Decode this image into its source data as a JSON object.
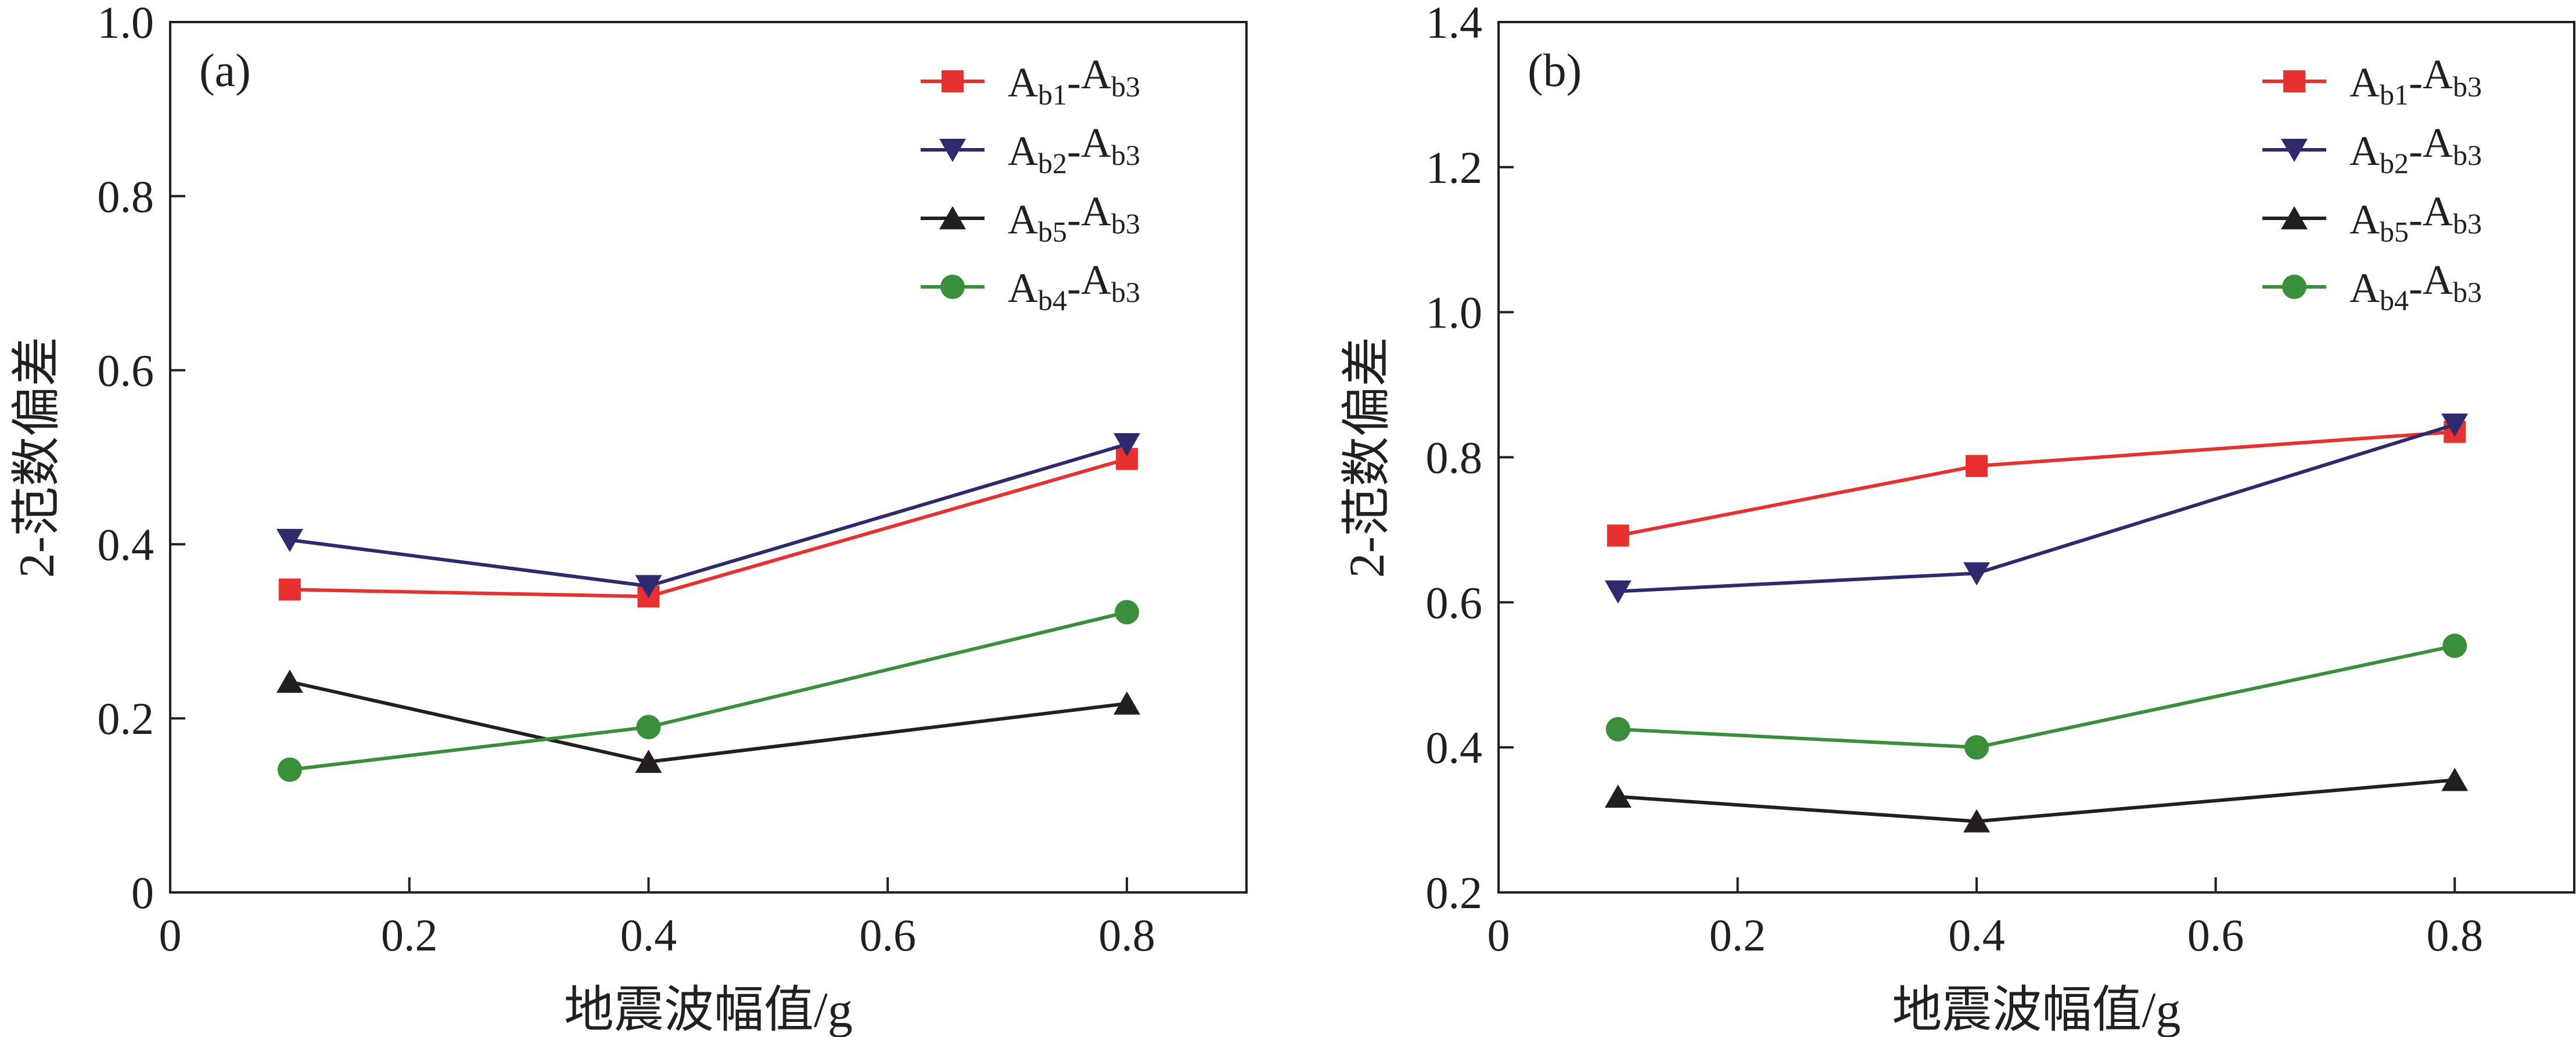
{
  "figure": {
    "panels": [
      "a",
      "b"
    ]
  },
  "chart_data": [
    {
      "type": "line",
      "panel_label": "(a)",
      "xlabel": "地震波幅值/g",
      "ylabel": "2-范数偏差",
      "xlim": [
        0,
        0.9
      ],
      "ylim": [
        0,
        1.0
      ],
      "xticks": [
        "0",
        "0.2",
        "0.4",
        "0.6",
        "0.8"
      ],
      "yticks": [
        "0",
        "0.2",
        "0.4",
        "0.6",
        "0.8",
        "1.0"
      ],
      "legend_position": "top-right",
      "x": [
        0.1,
        0.4,
        0.8
      ],
      "series": [
        {
          "name": "Ab1-Ab3",
          "main1": "A",
          "sub1": "b1",
          "sep": "-",
          "main2": "A",
          "sub2": "b3",
          "color": "#e8312f",
          "marker": "square",
          "values": [
            0.348,
            0.34,
            0.498
          ]
        },
        {
          "name": "Ab2-Ab3",
          "main1": "A",
          "sub1": "b2",
          "sep": "-",
          "main2": "A",
          "sub2": "b3",
          "color": "#2e2a6e",
          "marker": "triangle-down",
          "values": [
            0.405,
            0.352,
            0.515
          ]
        },
        {
          "name": "Ab5-Ab3",
          "main1": "A",
          "sub1": "b5",
          "sep": "-",
          "main2": "A",
          "sub2": "b3",
          "color": "#231f20",
          "marker": "triangle-up",
          "values": [
            0.242,
            0.15,
            0.217
          ]
        },
        {
          "name": "Ab4-Ab3",
          "main1": "A",
          "sub1": "b4",
          "sep": "-",
          "main2": "A",
          "sub2": "b3",
          "color": "#3a8f3a",
          "marker": "circle",
          "values": [
            0.141,
            0.19,
            0.322
          ]
        }
      ]
    },
    {
      "type": "line",
      "panel_label": "(b)",
      "xlabel": "地震波幅值/g",
      "ylabel": "2-范数偏差",
      "xlim": [
        0,
        0.9
      ],
      "ylim": [
        0.2,
        1.4
      ],
      "xticks": [
        "0",
        "0.2",
        "0.4",
        "0.6",
        "0.8"
      ],
      "yticks": [
        "0.2",
        "0.4",
        "0.6",
        "0.8",
        "1.0",
        "1.2",
        "1.4"
      ],
      "legend_position": "top-right",
      "x": [
        0.1,
        0.4,
        0.8
      ],
      "series": [
        {
          "name": "Ab1-Ab3",
          "main1": "A",
          "sub1": "b1",
          "sep": "-",
          "main2": "A",
          "sub2": "b3",
          "color": "#e8312f",
          "marker": "square",
          "values": [
            0.692,
            0.788,
            0.835
          ]
        },
        {
          "name": "Ab2-Ab3",
          "main1": "A",
          "sub1": "b2",
          "sep": "-",
          "main2": "A",
          "sub2": "b3",
          "color": "#2e2a6e",
          "marker": "triangle-down",
          "values": [
            0.615,
            0.64,
            0.845
          ]
        },
        {
          "name": "Ab5-Ab3",
          "main1": "A",
          "sub1": "b5",
          "sep": "-",
          "main2": "A",
          "sub2": "b3",
          "color": "#231f20",
          "marker": "triangle-up",
          "values": [
            0.332,
            0.298,
            0.355
          ]
        },
        {
          "name": "Ab4-Ab3",
          "main1": "A",
          "sub1": "b4",
          "sep": "-",
          "main2": "A",
          "sub2": "b3",
          "color": "#3a8f3a",
          "marker": "circle",
          "values": [
            0.425,
            0.4,
            0.54
          ]
        }
      ]
    }
  ]
}
